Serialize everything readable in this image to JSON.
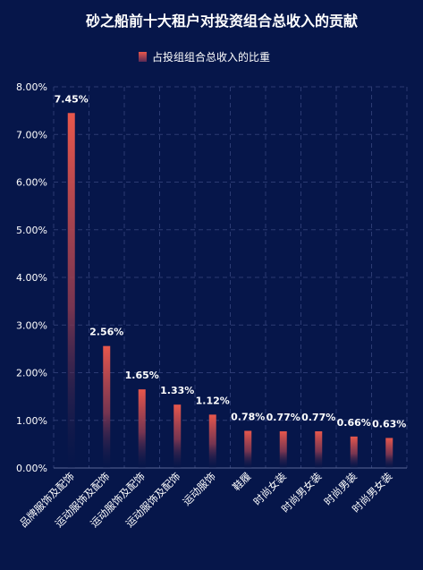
{
  "chart_data": {
    "type": "bar",
    "title": "砂之船前十大租户对投资组合总收入的贡献",
    "legend": {
      "label": "占投组组合总收入的比重",
      "position": "top-center"
    },
    "categories": [
      "品牌服饰及配饰",
      "运动服饰及配饰",
      "运动服饰及配饰",
      "运动服饰及配饰",
      "运动服饰",
      "鞋履",
      "时尚女装",
      "时尚男女装",
      "时尚男装",
      "时尚男女装"
    ],
    "series": [
      {
        "name": "占投组组合总收入的比重",
        "values": [
          7.45,
          2.56,
          1.65,
          1.33,
          1.12,
          0.78,
          0.77,
          0.77,
          0.66,
          0.63
        ],
        "labels": [
          "7.45%",
          "2.56%",
          "1.65%",
          "1.33%",
          "1.12%",
          "0.78%",
          "0.77%",
          "0.77%",
          "0.66%",
          "0.63%"
        ]
      }
    ],
    "y_ticks": [
      "0.00%",
      "1.00%",
      "2.00%",
      "3.00%",
      "4.00%",
      "5.00%",
      "6.00%",
      "7.00%",
      "8.00%"
    ],
    "ylim": [
      0,
      8
    ],
    "grid": true,
    "colors": {
      "background": "#06164a",
      "bar_top": "#e8574c",
      "bar_bottom": "#06164a",
      "grid": "#2c3b73"
    }
  }
}
